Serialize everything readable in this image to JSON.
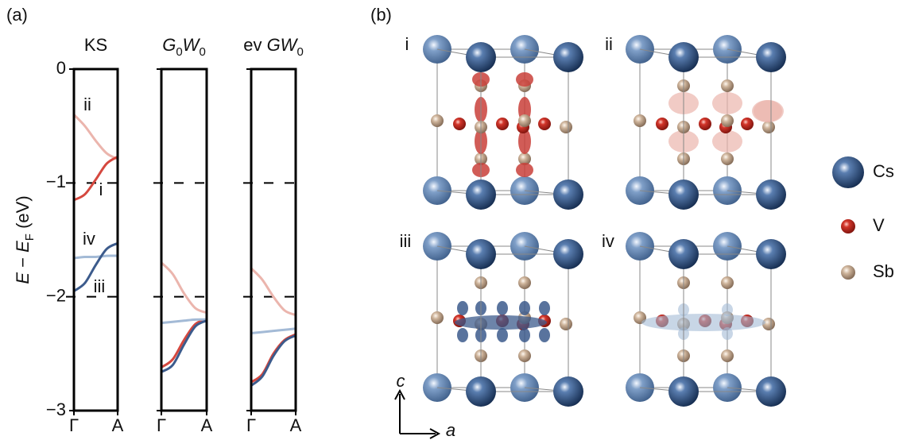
{
  "chart_data": [
    {
      "type": "line",
      "title": [
        {
          "text": "KS"
        }
      ],
      "x": [
        0,
        0.25,
        0.5,
        0.75,
        1
      ],
      "xlim": [
        0,
        1
      ],
      "xticks": [
        {
          "value": 0,
          "label": "Γ"
        },
        {
          "value": 1,
          "label": "A"
        }
      ],
      "ylim": [
        -3,
        0
      ],
      "yticks": [
        0,
        {
          "value": -1,
          "label": "−1"
        },
        {
          "value": -2,
          "label": "−2"
        },
        {
          "value": -3,
          "label": "−3"
        }
      ],
      "ylabel": [
        {
          "text": "E",
          "italic": true
        },
        {
          "text": " − "
        },
        {
          "text": "E",
          "italic": true
        },
        {
          "text": "F",
          "sub": true
        },
        {
          "text": " (eV)"
        }
      ],
      "grid": "dashed",
      "series": [
        {
          "name": "ii",
          "color": "#ebb5ad",
          "values": [
            -0.4,
            -0.5,
            -0.63,
            -0.74,
            -0.79
          ]
        },
        {
          "name": "i",
          "color": "#d5483f",
          "values": [
            -1.15,
            -1.1,
            -0.97,
            -0.83,
            -0.77
          ]
        },
        {
          "name": "iv",
          "color": "#a3bad6",
          "values": [
            -1.66,
            -1.65,
            -1.65,
            -1.64,
            -1.64
          ]
        },
        {
          "name": "iii",
          "color": "#3c5b8c",
          "values": [
            -1.95,
            -1.88,
            -1.72,
            -1.58,
            -1.53
          ]
        }
      ]
    },
    {
      "type": "line",
      "title": [
        {
          "text": "G",
          "italic": true
        },
        {
          "text": "0",
          "sub": true
        },
        {
          "text": "W",
          "italic": true
        },
        {
          "text": "0",
          "sub": true
        }
      ],
      "x": [
        0,
        0.25,
        0.5,
        0.75,
        1
      ],
      "xlim": [
        0,
        1
      ],
      "xticks": [
        {
          "value": 0,
          "label": "Γ"
        },
        {
          "value": 1,
          "label": "A"
        }
      ],
      "ylim": [
        -3,
        0
      ],
      "grid": "dashed",
      "series": [
        {
          "color": "#ebb5ad",
          "values": [
            -1.7,
            -1.8,
            -1.97,
            -2.1,
            -2.14
          ]
        },
        {
          "color": "#d5483f",
          "values": [
            -2.62,
            -2.55,
            -2.38,
            -2.24,
            -2.2
          ]
        },
        {
          "color": "#a3bad6",
          "values": [
            -2.23,
            -2.22,
            -2.21,
            -2.2,
            -2.2
          ]
        },
        {
          "color": "#3c5b8c",
          "values": [
            -2.66,
            -2.6,
            -2.42,
            -2.26,
            -2.21
          ]
        }
      ]
    },
    {
      "type": "line",
      "title": [
        {
          "text": "ev "
        },
        {
          "text": "GW",
          "italic": true
        },
        {
          "text": "0",
          "sub": true
        }
      ],
      "x": [
        0,
        0.25,
        0.5,
        0.75,
        1
      ],
      "xlim": [
        0,
        1
      ],
      "xticks": [
        {
          "value": 0,
          "label": "Γ"
        },
        {
          "value": 1,
          "label": "A"
        }
      ],
      "ylim": [
        -3,
        0
      ],
      "grid": "dashed",
      "series": [
        {
          "color": "#ebb5ad",
          "values": [
            -1.75,
            -1.85,
            -2.0,
            -2.12,
            -2.16
          ]
        },
        {
          "color": "#d5483f",
          "values": [
            -2.75,
            -2.68,
            -2.5,
            -2.38,
            -2.33
          ]
        },
        {
          "color": "#a3bad6",
          "values": [
            -2.32,
            -2.31,
            -2.3,
            -2.29,
            -2.28
          ]
        },
        {
          "color": "#3c5b8c",
          "values": [
            -2.78,
            -2.7,
            -2.52,
            -2.39,
            -2.34
          ]
        }
      ]
    }
  ],
  "figure": {
    "panel_labels": [
      "(a)",
      "(b)"
    ],
    "structures": [
      {
        "label": "i",
        "color": "#c9403a"
      },
      {
        "label": "ii",
        "color": "#ebb5ad"
      },
      {
        "label": "iii",
        "color": "#3c5b8c"
      },
      {
        "label": "iv",
        "color": "#a3bad6"
      }
    ],
    "legend": [
      {
        "name": "Cs",
        "color": "#3c5b8c"
      },
      {
        "name": "V",
        "color": "#c9403a"
      },
      {
        "name": "Sb",
        "color": "#a58a76"
      }
    ],
    "axis_labels": [
      "c",
      "a"
    ]
  }
}
